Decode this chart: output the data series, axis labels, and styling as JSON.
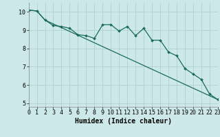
{
  "title": "",
  "xlabel": "Humidex (Indice chaleur)",
  "bg_color": "#cce8e8",
  "grid_color": "#b0d0d0",
  "line_color": "#1a6b5a",
  "line1_x": [
    0,
    1,
    2,
    3,
    4,
    5,
    6,
    7,
    8,
    9,
    10,
    11,
    12,
    13,
    14,
    15,
    16,
    17,
    18,
    19,
    20,
    21,
    22,
    23
  ],
  "line1_y": [
    10.1,
    10.05,
    9.55,
    9.25,
    9.2,
    9.1,
    8.75,
    8.7,
    8.55,
    9.3,
    9.3,
    8.95,
    9.2,
    8.7,
    9.1,
    8.45,
    8.45,
    7.8,
    7.6,
    6.9,
    6.6,
    6.3,
    5.5,
    5.2
  ],
  "line2_x": [
    0,
    1,
    2,
    23
  ],
  "line2_y": [
    10.1,
    10.05,
    9.55,
    5.2
  ],
  "xlim": [
    0,
    23
  ],
  "ylim": [
    4.8,
    10.5
  ],
  "yticks": [
    5,
    6,
    7,
    8,
    9,
    10
  ],
  "xticks": [
    0,
    1,
    2,
    3,
    4,
    5,
    6,
    7,
    8,
    9,
    10,
    11,
    12,
    13,
    14,
    15,
    16,
    17,
    18,
    19,
    20,
    21,
    22,
    23
  ],
  "xlabel_fontsize": 7,
  "tick_fontsize": 6
}
